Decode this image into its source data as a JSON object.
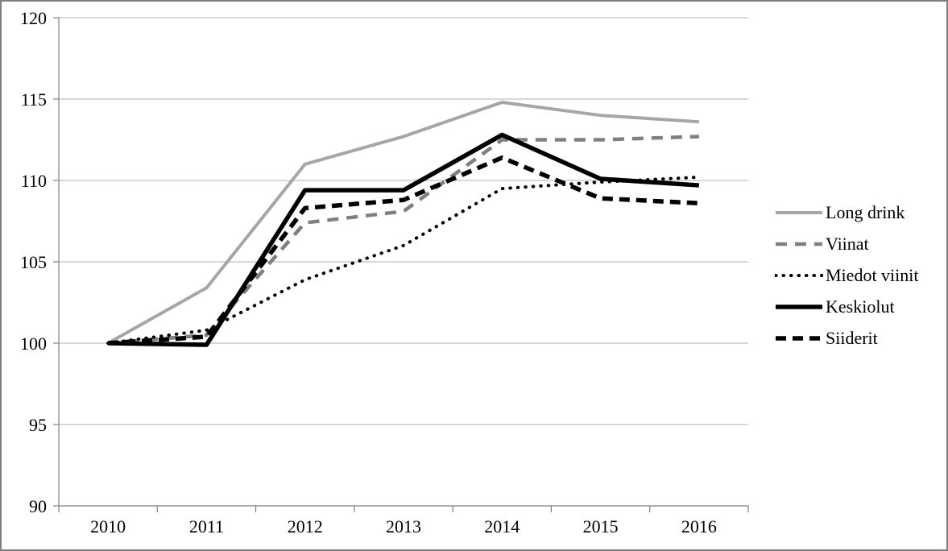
{
  "window": {
    "background_color": "#ffffff",
    "border_color": "#7f7f7f"
  },
  "chart_data": {
    "type": "line",
    "title": "",
    "xlabel": "",
    "ylabel": "",
    "categories": [
      "2010",
      "2011",
      "2012",
      "2013",
      "2014",
      "2015",
      "2016"
    ],
    "series": [
      {
        "name": "Long drink",
        "values": [
          100,
          103.4,
          111.0,
          112.7,
          114.8,
          114.0,
          113.6
        ],
        "color": "#a6a6a6",
        "style": "solid",
        "width": 4
      },
      {
        "name": "Viinat",
        "values": [
          100,
          100.5,
          107.4,
          108.1,
          112.5,
          112.5,
          112.7
        ],
        "color": "#7f7f7f",
        "style": "dashed",
        "width": 4.5
      },
      {
        "name": "Miedot viinit",
        "values": [
          100,
          100.8,
          103.9,
          106.0,
          109.5,
          109.9,
          110.2
        ],
        "color": "#000000",
        "style": "dotted",
        "width": 4
      },
      {
        "name": "Keskiolut",
        "values": [
          100,
          99.9,
          109.4,
          109.4,
          112.8,
          110.1,
          109.7
        ],
        "color": "#000000",
        "style": "solid",
        "width": 5.5
      },
      {
        "name": "Siiderit",
        "values": [
          100,
          100.4,
          108.3,
          108.8,
          111.4,
          108.9,
          108.6
        ],
        "color": "#000000",
        "style": "dashed",
        "width": 5.5
      }
    ],
    "ylim": [
      90,
      120
    ],
    "ytick_step": 5,
    "yticks": [
      "90",
      "95",
      "100",
      "105",
      "110",
      "115",
      "120"
    ],
    "grid": "horizontal",
    "legend_position": "right",
    "axis_color": "#808080",
    "gridline_color": "#c0c0c0",
    "text_color": "#000000"
  }
}
